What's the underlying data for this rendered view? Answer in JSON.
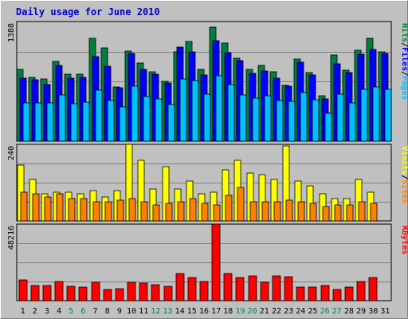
{
  "chart_data": [
    {
      "type": "bar",
      "title": "Daily usage for June 2010",
      "panel": "hits-files-pages",
      "categories": [
        "1",
        "2",
        "3",
        "4",
        "5",
        "6",
        "7",
        "8",
        "9",
        "10",
        "11",
        "12",
        "13",
        "14",
        "15",
        "16",
        "17",
        "18",
        "19",
        "20",
        "21",
        "22",
        "23",
        "24",
        "25",
        "26",
        "27",
        "28",
        "29",
        "30",
        "31"
      ],
      "weekend_days": [
        "5",
        "6",
        "12",
        "13",
        "19",
        "20",
        "26",
        "27"
      ],
      "ymax_label": "1388",
      "ylim": [
        0,
        1388
      ],
      "legend_labels": [
        "Pages",
        "Files",
        "Hits"
      ],
      "legend_separator": "/",
      "grid": true,
      "series": [
        {
          "name": "Hits",
          "color": "#008040",
          "values": [
            830,
            740,
            720,
            925,
            775,
            775,
            1195,
            1080,
            630,
            1045,
            910,
            805,
            695,
            1035,
            1160,
            830,
            1320,
            1135,
            960,
            835,
            875,
            805,
            650,
            950,
            795,
            525,
            995,
            820,
            1055,
            1190,
            1040
          ]
        },
        {
          "name": "Files",
          "color": "#0000ff",
          "values": [
            735,
            710,
            655,
            880,
            730,
            740,
            985,
            870,
            620,
            1020,
            830,
            780,
            675,
            1090,
            1040,
            770,
            1170,
            1030,
            935,
            790,
            810,
            730,
            640,
            920,
            770,
            490,
            900,
            795,
            1005,
            1060,
            1015
          ]
        },
        {
          "name": "Pages",
          "color": "#00c0ff",
          "values": [
            440,
            445,
            440,
            540,
            435,
            450,
            595,
            470,
            395,
            635,
            515,
            490,
            430,
            720,
            700,
            545,
            760,
            655,
            540,
            500,
            530,
            475,
            465,
            565,
            485,
            325,
            550,
            440,
            605,
            625,
            600
          ]
        }
      ]
    },
    {
      "type": "bar",
      "panel": "visits-sites",
      "categories": [
        "1",
        "2",
        "3",
        "4",
        "5",
        "6",
        "7",
        "8",
        "9",
        "10",
        "11",
        "12",
        "13",
        "14",
        "15",
        "16",
        "17",
        "18",
        "19",
        "20",
        "21",
        "22",
        "23",
        "24",
        "25",
        "26",
        "27",
        "28",
        "29",
        "30",
        "31"
      ],
      "ymax_label": "240",
      "ylim": [
        0,
        240
      ],
      "legend_labels": [
        "Sites",
        "Visits"
      ],
      "legend_separator": "/",
      "grid": true,
      "series": [
        {
          "name": "Visits",
          "color": "#ffff00",
          "values": [
            175,
            130,
            85,
            90,
            90,
            85,
            95,
            75,
            95,
            240,
            190,
            100,
            170,
            100,
            125,
            85,
            90,
            160,
            190,
            150,
            145,
            130,
            235,
            125,
            110,
            85,
            70,
            70,
            130,
            90,
            0
          ]
        },
        {
          "name": "Sites",
          "color": "#ff8000",
          "values": [
            90,
            85,
            75,
            85,
            70,
            70,
            60,
            60,
            65,
            70,
            60,
            50,
            55,
            60,
            70,
            55,
            50,
            80,
            105,
            60,
            60,
            60,
            65,
            60,
            55,
            45,
            50,
            50,
            60,
            55,
            0
          ]
        }
      ]
    },
    {
      "type": "bar",
      "panel": "kbytes",
      "categories": [
        "1",
        "2",
        "3",
        "4",
        "5",
        "6",
        "7",
        "8",
        "9",
        "10",
        "11",
        "12",
        "13",
        "14",
        "15",
        "16",
        "17",
        "18",
        "19",
        "20",
        "21",
        "22",
        "23",
        "24",
        "25",
        "26",
        "27",
        "28",
        "29",
        "30",
        "31"
      ],
      "ymax_label": "48216",
      "ylim": [
        0,
        48216
      ],
      "legend_labels": [
        "KBytes"
      ],
      "grid": true,
      "series": [
        {
          "name": "KBytes",
          "color": "#ff0000",
          "values": [
            13300,
            9600,
            9600,
            12300,
            9100,
            8600,
            11400,
            7200,
            7500,
            11400,
            10800,
            10200,
            9100,
            17000,
            14500,
            12300,
            48216,
            17000,
            14500,
            15700,
            11800,
            15700,
            15200,
            8600,
            8600,
            9600,
            7200,
            8600,
            12300,
            14500,
            0
          ]
        }
      ]
    }
  ]
}
